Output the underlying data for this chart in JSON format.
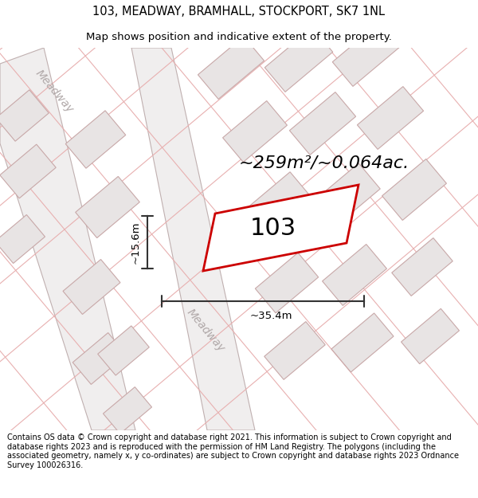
{
  "title_line1": "103, MEADWAY, BRAMHALL, STOCKPORT, SK7 1NL",
  "title_line2": "Map shows position and indicative extent of the property.",
  "area_text": "~259m²/~0.064ac.",
  "plot_number": "103",
  "dim_width": "~35.4m",
  "dim_height": "~15.6m",
  "road_label1": "Meadway",
  "road_label2": "Meadway",
  "footer_text": "Contains OS data © Crown copyright and database right 2021. This information is subject to Crown copyright and database rights 2023 and is reproduced with the permission of HM Land Registry. The polygons (including the associated geometry, namely x, y co-ordinates) are subject to Crown copyright and database rights 2023 Ordnance Survey 100026316.",
  "bg_color": "#ffffff",
  "map_bg_color": "#ffffff",
  "plot_edge_color": "#cc0000",
  "plot_fill_color": "#ffffff",
  "neighbor_edge_color": "#c8a8a8",
  "neighbor_fill_color": "#e8e4e4",
  "road_fill_color": "#f0eeee",
  "road_edge_color": "#c0b0b0",
  "cadastral_color": "#e8b0b0",
  "road_text_color": "#b0a8a8",
  "dim_color": "#333333",
  "title_fontsize": 10.5,
  "subtitle_fontsize": 9.5,
  "area_fontsize": 16,
  "plot_num_fontsize": 22,
  "dim_fontsize": 9.5,
  "road_fontsize": 10,
  "footer_fontsize": 7.0
}
